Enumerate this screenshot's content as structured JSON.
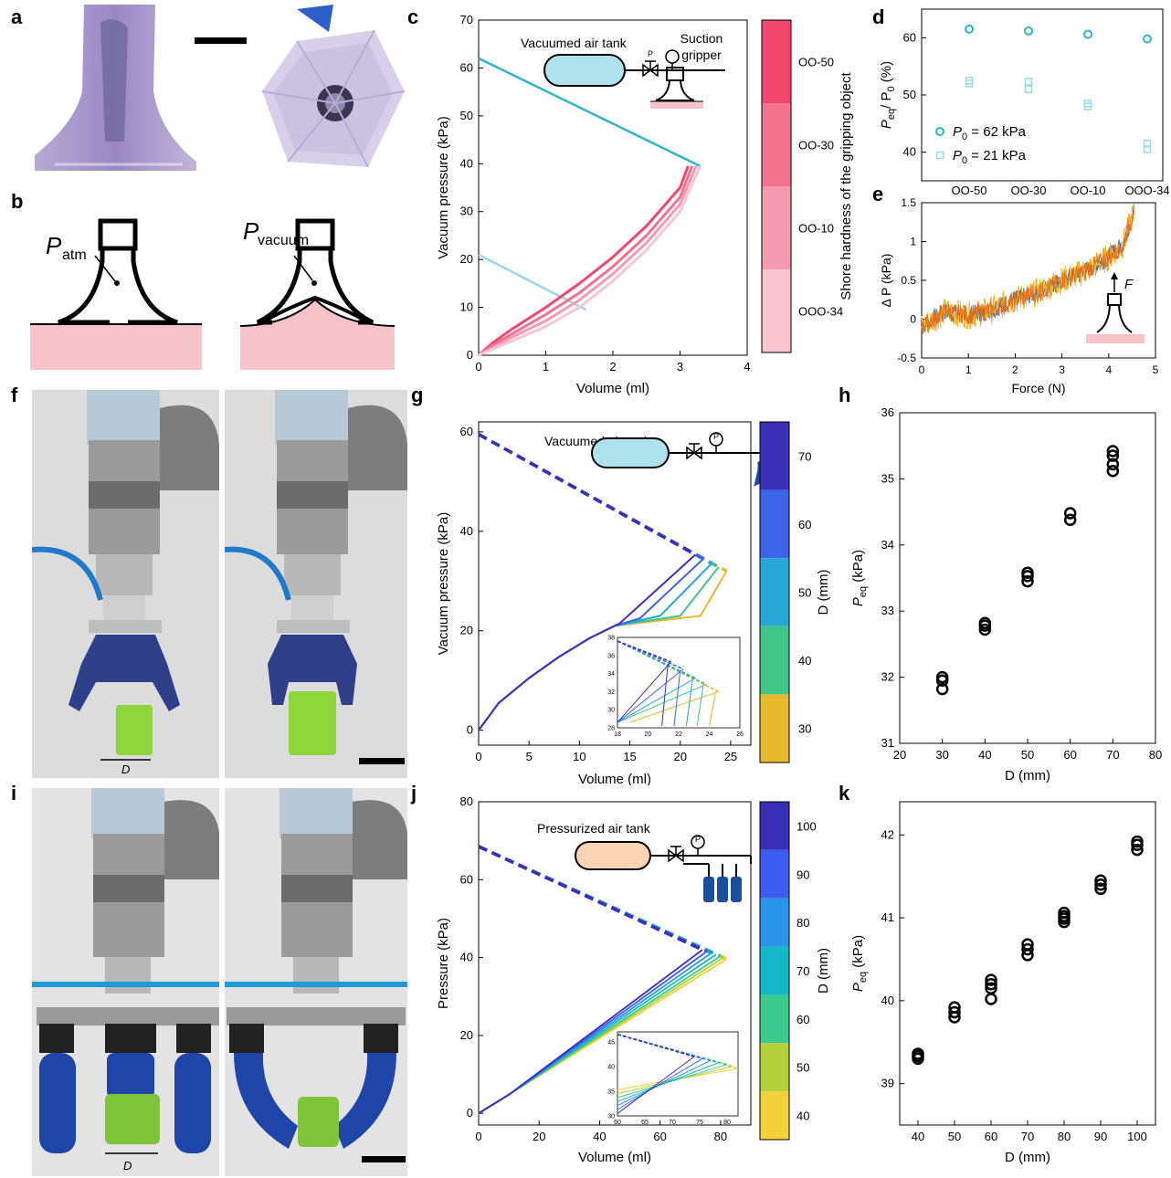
{
  "panels": {
    "a": "a",
    "b": "b",
    "c": "c",
    "d": "d",
    "e": "e",
    "f": "f",
    "g": "g",
    "h": "h",
    "i": "i",
    "j": "j",
    "k": "k"
  },
  "schematic_b": {
    "left_label_main": "P",
    "left_label_sub": "atm",
    "right_label_main": "P",
    "right_label_sub": "vacuum"
  },
  "photo_f": {
    "dimension_label": "D"
  },
  "photo_i": {
    "dimension_label": "D"
  },
  "colors": {
    "tank_blue": "#aee3ee",
    "tank_orange": "#fbd3b5",
    "substrate": "#f8c2cb",
    "teal": "#34b4c8",
    "light_teal": "#9ad9e6",
    "gripper_blue": "#1b4f9c"
  },
  "chart_data": [
    {
      "id": "c",
      "type": "line",
      "xlabel": "Volume (ml)",
      "ylabel": "Vacuum pressure (kPa)",
      "xlim": [
        0,
        4
      ],
      "ylim": [
        0,
        70
      ],
      "xticks": [
        0,
        1,
        2,
        3,
        4
      ],
      "yticks": [
        0,
        10,
        20,
        30,
        40,
        50,
        60,
        70
      ],
      "inset": {
        "tank": "Vacuumed air tank",
        "gripper_line1": "Suction",
        "gripper_line2": "gripper",
        "gauge": "P"
      },
      "colorbar": {
        "title": "Shore hardness of the gripping object",
        "labels": [
          "OO-50",
          "OO-30",
          "OO-10",
          "OOO-34"
        ],
        "colors": [
          "#f2476f",
          "#f3728f",
          "#f59ab0",
          "#f9c6d1"
        ]
      },
      "tank_lines": [
        {
          "color": "#34b4c8",
          "x": [
            0,
            3.3
          ],
          "y": [
            62,
            39.5
          ]
        },
        {
          "color": "#9ad9e6",
          "x": [
            0,
            1.6
          ],
          "y": [
            21,
            9.5
          ]
        }
      ],
      "series": [
        {
          "color": "#f2476f",
          "x": [
            0,
            0.2,
            0.5,
            1,
            1.5,
            2,
            2.5,
            3,
            3.12
          ],
          "y": [
            0,
            2.5,
            5.5,
            10,
            15,
            20.5,
            27,
            35,
            39.5
          ]
        },
        {
          "color": "#f3728f",
          "x": [
            0,
            0.2,
            0.5,
            1,
            1.5,
            2,
            2.5,
            3,
            3.18
          ],
          "y": [
            0,
            2,
            4.5,
            8.5,
            13,
            18.5,
            25,
            33,
            39.5
          ]
        },
        {
          "color": "#f59ab0",
          "x": [
            0,
            0.2,
            0.5,
            1,
            1.5,
            2,
            2.5,
            3,
            3.24
          ],
          "y": [
            0,
            1.5,
            3.8,
            7.2,
            11.5,
            17,
            23.5,
            31.5,
            39.5
          ]
        },
        {
          "color": "#f9c6d1",
          "x": [
            0,
            0.2,
            0.5,
            1,
            1.5,
            2,
            2.5,
            3,
            3.3
          ],
          "y": [
            0,
            1.2,
            3,
            6,
            10,
            15.5,
            22,
            30,
            39.5
          ]
        }
      ]
    },
    {
      "id": "d",
      "type": "scatter",
      "ylabel_main": "P",
      "ylabel_sub1": "eq",
      "ylabel_mid": "/ P",
      "ylabel_sub2": "0",
      "ylabel_unit": " (%)",
      "categories": [
        "OO-50",
        "OO-30",
        "OO-10",
        "OOO-34"
      ],
      "ylim": [
        35,
        65
      ],
      "yticks": [
        40,
        50,
        60
      ],
      "series": [
        {
          "name": "P0 = 62 kPa",
          "legend_main": "P",
          "legend_sub": "0",
          "legend_rest": " = 62 kPa",
          "marker": "circle",
          "color": "#34b4c8",
          "values": [
            [
              61.5
            ],
            [
              61.2
            ],
            [
              60.6
            ],
            [
              59.8
            ]
          ]
        },
        {
          "name": "P0 = 21 kPa",
          "legend_main": "P",
          "legend_sub": "0",
          "legend_rest": " = 21 kPa",
          "marker": "square",
          "color": "#9ad9e6",
          "values": [
            [
              52.5,
              52
            ],
            [
              52.3,
              51
            ],
            [
              48.5,
              48
            ],
            [
              41.5,
              40.5
            ]
          ]
        }
      ]
    },
    {
      "id": "e",
      "type": "line",
      "xlabel": "Force (N)",
      "ylabel": "Δ P (kPa)",
      "xlim": [
        0,
        5
      ],
      "ylim": [
        -0.5,
        1.5
      ],
      "xticks": [
        0,
        1,
        2,
        3,
        4,
        5
      ],
      "yticks": [
        -0.5,
        0,
        0.5,
        1,
        1.5
      ],
      "inset_label": "F",
      "series_colors": [
        "#1f6fb3",
        "#e07020",
        "#f0b020"
      ],
      "trend": {
        "x": [
          0,
          0.5,
          1,
          1.5,
          2,
          2.5,
          3,
          3.5,
          4,
          4.3,
          4.6
        ],
        "y": [
          -0.1,
          0.1,
          0.05,
          0.12,
          0.25,
          0.35,
          0.5,
          0.62,
          0.8,
          0.95,
          1.5
        ]
      }
    },
    {
      "id": "g",
      "type": "line",
      "xlabel": "Volume (ml)",
      "ylabel": "Vacuum pressure (kPa)",
      "xlim": [
        0,
        27
      ],
      "ylim": [
        -3,
        62
      ],
      "xticks": [
        0,
        5,
        10,
        15,
        20,
        25
      ],
      "yticks": [
        0,
        20,
        40,
        60
      ],
      "inset_label": "Vacuumed air tank",
      "gauge": "P",
      "colorbar": {
        "title": "D (mm)",
        "labels": [
          "70",
          "60",
          "50",
          "40",
          "30"
        ],
        "colors": [
          "#3a31b8",
          "#3d63e8",
          "#27a7d8",
          "#40c487",
          "#e7b92e"
        ]
      },
      "common": {
        "x": [
          0,
          2,
          5,
          8,
          11,
          13.5
        ],
        "y": [
          0,
          5.5,
          10.5,
          14.8,
          18.5,
          21
        ]
      },
      "series": [
        {
          "name": "70",
          "color": "#3a31b8",
          "peak": [
            21.5,
            35.3
          ],
          "fill_end": [
            14.0,
            21.5
          ]
        },
        {
          "name": "60",
          "color": "#3d63e8",
          "peak": [
            22.3,
            34.5
          ],
          "fill_end": [
            16.0,
            22.5
          ]
        },
        {
          "name": "50",
          "color": "#27a7d8",
          "peak": [
            23.1,
            33.5
          ],
          "fill_end": [
            18.0,
            23.0
          ]
        },
        {
          "name": "40",
          "color": "#40c487",
          "peak": [
            23.8,
            32.8
          ],
          "fill_end": [
            20.0,
            23.0
          ]
        },
        {
          "name": "30",
          "color": "#e7b92e",
          "peak": [
            24.6,
            32.0
          ],
          "fill_end": [
            22.0,
            23.0
          ]
        }
      ],
      "inset": {
        "xlim": [
          18,
          26
        ],
        "ylim": [
          28,
          38
        ],
        "xticks": [
          18,
          20,
          22,
          24,
          26
        ],
        "yticks": [
          28,
          30,
          32,
          34,
          36,
          38
        ]
      }
    },
    {
      "id": "h",
      "type": "scatter",
      "xlabel": "D (mm)",
      "ylabel_main": "P",
      "ylabel_sub": "eq",
      "ylabel_unit": " (kPa)",
      "xlim": [
        20,
        80
      ],
      "ylim": [
        31,
        36
      ],
      "xticks": [
        20,
        30,
        40,
        50,
        60,
        70,
        80
      ],
      "yticks": [
        31,
        32,
        33,
        34,
        35,
        36
      ],
      "x": [
        30,
        30,
        30,
        40,
        40,
        40,
        50,
        50,
        50,
        60,
        60,
        70,
        70,
        70,
        70
      ],
      "y": [
        31.82,
        31.95,
        32.0,
        32.72,
        32.78,
        32.82,
        33.45,
        33.53,
        33.58,
        34.38,
        34.48,
        35.12,
        35.22,
        35.35,
        35.42
      ]
    },
    {
      "id": "j",
      "type": "line",
      "xlabel": "Volume (ml)",
      "ylabel": "Pressure (kPa)",
      "xlim": [
        0,
        90
      ],
      "ylim": [
        -3,
        80
      ],
      "xticks": [
        0,
        20,
        40,
        60,
        80
      ],
      "yticks": [
        0,
        20,
        40,
        60,
        80
      ],
      "inset_label": "Pressurized air tank",
      "gauge": "P",
      "colorbar": {
        "title": "D (mm)",
        "labels": [
          "100",
          "90",
          "80",
          "70",
          "60",
          "50",
          "40"
        ],
        "colors": [
          "#3a2fb5",
          "#3d5cf0",
          "#2a94e8",
          "#14b8c8",
          "#3ec98f",
          "#b3cf3a",
          "#f4d03a"
        ]
      },
      "series": [
        {
          "name": "100",
          "color": "#3a2fb5",
          "peak": [
            74,
            42.0
          ]
        },
        {
          "name": "90",
          "color": "#3d5cf0",
          "peak": [
            75.5,
            41.6
          ]
        },
        {
          "name": "80",
          "color": "#2a94e8",
          "peak": [
            77,
            41.2
          ]
        },
        {
          "name": "70",
          "color": "#14b8c8",
          "peak": [
            78.5,
            40.8
          ]
        },
        {
          "name": "60",
          "color": "#3ec98f",
          "peak": [
            80,
            40.4
          ]
        },
        {
          "name": "50",
          "color": "#b3cf3a",
          "peak": [
            81,
            40.0
          ]
        },
        {
          "name": "40",
          "color": "#f4d03a",
          "peak": [
            82,
            39.6
          ]
        }
      ],
      "inset": {
        "xlim": [
          60,
          82
        ],
        "ylim": [
          30,
          47
        ],
        "xticks": [
          60,
          65,
          70,
          75,
          80
        ],
        "yticks": [
          30,
          35,
          40,
          45
        ]
      }
    },
    {
      "id": "k",
      "type": "scatter",
      "xlabel": "D (mm)",
      "ylabel_main": "P",
      "ylabel_sub": "eq",
      "ylabel_unit": " (kPa)",
      "xlim": [
        35,
        105
      ],
      "ylim": [
        38.5,
        42.4
      ],
      "xticks": [
        40,
        50,
        60,
        70,
        80,
        90,
        100
      ],
      "yticks": [
        39,
        40,
        41,
        42
      ],
      "x": [
        40,
        40,
        40,
        50,
        50,
        50,
        60,
        60,
        60,
        60,
        70,
        70,
        70,
        80,
        80,
        80,
        80,
        90,
        90,
        90,
        100,
        100,
        100
      ],
      "y": [
        39.3,
        39.33,
        39.36,
        39.8,
        39.86,
        39.92,
        40.02,
        40.15,
        40.2,
        40.25,
        40.55,
        40.62,
        40.68,
        40.95,
        40.99,
        41.02,
        41.06,
        41.35,
        41.4,
        41.45,
        41.82,
        41.88,
        41.92
      ]
    }
  ]
}
